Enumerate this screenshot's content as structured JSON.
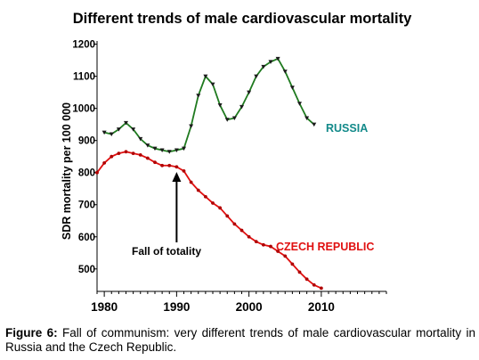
{
  "chart_data": {
    "type": "line",
    "title": "Different trends of male cardiovascular mortality",
    "ylabel": "SDR mortality per 100 000",
    "xlabel": "",
    "xlim": [
      1979,
      2019
    ],
    "ylim": [
      430,
      1210
    ],
    "x_ticks": [
      1980,
      1990,
      2000,
      2010
    ],
    "y_ticks": [
      500,
      600,
      700,
      800,
      900,
      1000,
      1100,
      1200
    ],
    "grid": false,
    "series": [
      {
        "name": "RUSSIA",
        "color": "#1f7a1f",
        "label_color": "#138a8a",
        "x": [
          1980,
          1981,
          1982,
          1983,
          1984,
          1985,
          1986,
          1987,
          1988,
          1989,
          1990,
          1991,
          1992,
          1993,
          1994,
          1995,
          1996,
          1997,
          1998,
          1999,
          2000,
          2001,
          2002,
          2003,
          2004,
          2005,
          2006,
          2007,
          2008,
          2009
        ],
        "values": [
          925,
          920,
          935,
          955,
          935,
          905,
          885,
          875,
          870,
          865,
          870,
          875,
          945,
          1040,
          1100,
          1075,
          1010,
          965,
          970,
          1005,
          1050,
          1100,
          1130,
          1145,
          1155,
          1115,
          1065,
          1015,
          970,
          950
        ]
      },
      {
        "name": "CZECH REPUBLIC",
        "color": "#e01010",
        "label_color": "#e01010",
        "x": [
          1979,
          1980,
          1981,
          1982,
          1983,
          1984,
          1985,
          1986,
          1987,
          1988,
          1989,
          1990,
          1991,
          1992,
          1993,
          1994,
          1995,
          1996,
          1997,
          1998,
          1999,
          2000,
          2001,
          2002,
          2003,
          2004,
          2005,
          2006,
          2007,
          2008,
          2009,
          2010
        ],
        "values": [
          800,
          830,
          850,
          860,
          865,
          860,
          855,
          845,
          832,
          822,
          822,
          818,
          805,
          770,
          745,
          725,
          705,
          690,
          665,
          640,
          620,
          600,
          585,
          575,
          570,
          555,
          540,
          515,
          490,
          468,
          450,
          440
        ]
      }
    ],
    "annotations": [
      {
        "text": "Fall of totality",
        "x": 1990,
        "y": 600
      }
    ]
  },
  "caption": {
    "label": "Figure 6:",
    "text": " Fall of communism: very different trends of male cardiovascular mortality in Russia and the Czech Republic."
  }
}
